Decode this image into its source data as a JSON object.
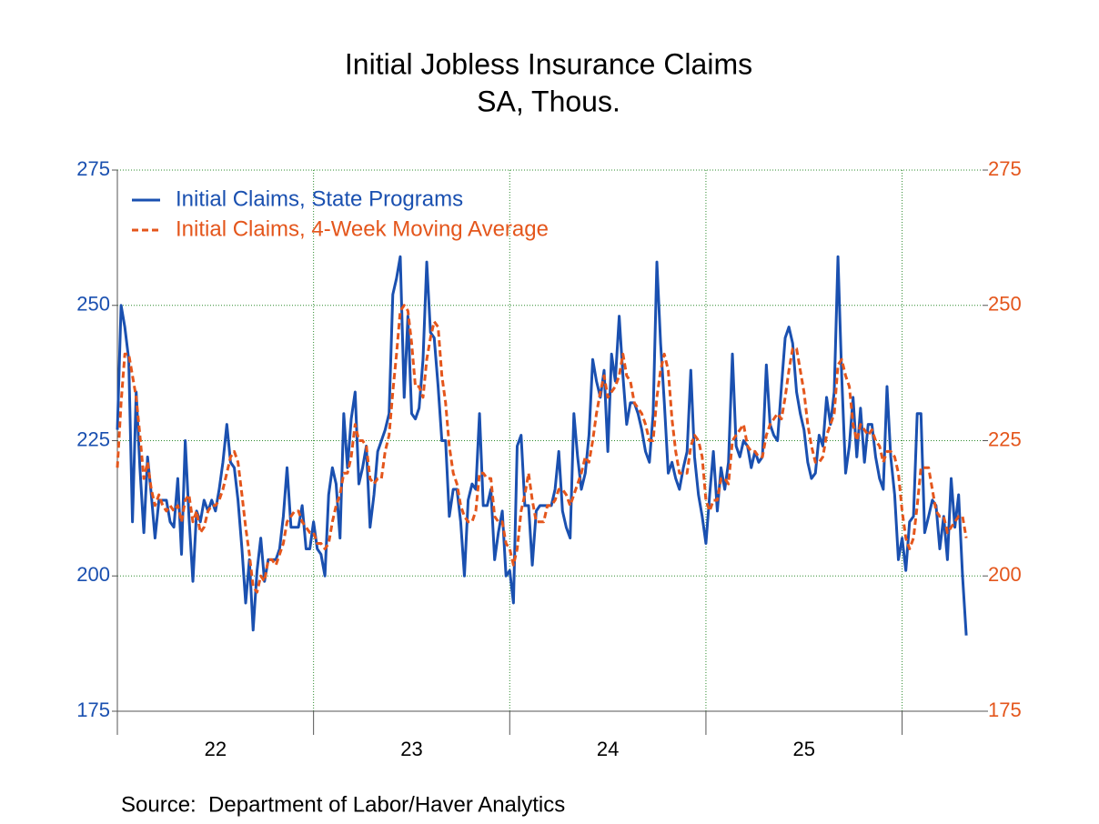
{
  "chart_data": {
    "type": "line",
    "title": "Initial Jobless Insurance Claims",
    "subtitle": "SA, Thous.",
    "source": "Source:  Department of Labor/Haver Analytics",
    "legend": "upper left",
    "grid": true,
    "xlim": [
      2022,
      2026.41
    ],
    "xticks": [
      2022,
      2023,
      2024,
      2025,
      2026
    ],
    "xlabels": [
      {
        "value": 2022.5,
        "label": "22"
      },
      {
        "value": 2023.5,
        "label": "23"
      },
      {
        "value": 2024.5,
        "label": "24"
      },
      {
        "value": 2025.5,
        "label": "25"
      }
    ],
    "ylim": [
      175,
      275
    ],
    "yticks": [
      175,
      200,
      225,
      250,
      275
    ],
    "y2lim": [
      175,
      275
    ],
    "y2ticks": [
      175,
      200,
      225,
      250,
      275
    ],
    "x": [
      2022,
      2022.019,
      2022.038,
      2022.058,
      2022.077,
      2022.096,
      2022.115,
      2022.135,
      2022.154,
      2022.173,
      2022.192,
      2022.212,
      2022.231,
      2022.25,
      2022.269,
      2022.288,
      2022.308,
      2022.327,
      2022.346,
      2022.365,
      2022.385,
      2022.404,
      2022.423,
      2022.442,
      2022.462,
      2022.481,
      2022.5,
      2022.519,
      2022.538,
      2022.558,
      2022.577,
      2022.596,
      2022.615,
      2022.635,
      2022.654,
      2022.673,
      2022.692,
      2022.712,
      2022.731,
      2022.75,
      2022.769,
      2022.788,
      2022.808,
      2022.827,
      2022.846,
      2022.865,
      2022.885,
      2022.904,
      2022.923,
      2022.942,
      2022.962,
      2022.981,
      2023,
      2023.019,
      2023.038,
      2023.058,
      2023.077,
      2023.096,
      2023.115,
      2023.135,
      2023.154,
      2023.173,
      2023.192,
      2023.212,
      2023.231,
      2023.25,
      2023.269,
      2023.288,
      2023.308,
      2023.327,
      2023.346,
      2023.365,
      2023.385,
      2023.404,
      2023.423,
      2023.442,
      2023.462,
      2023.481,
      2023.5,
      2023.519,
      2023.538,
      2023.558,
      2023.577,
      2023.596,
      2023.615,
      2023.635,
      2023.654,
      2023.673,
      2023.692,
      2023.712,
      2023.731,
      2023.75,
      2023.769,
      2023.788,
      2023.808,
      2023.827,
      2023.846,
      2023.865,
      2023.885,
      2023.904,
      2023.923,
      2023.942,
      2023.962,
      2023.981,
      2024,
      2024.019,
      2024.038,
      2024.058,
      2024.077,
      2024.096,
      2024.115,
      2024.135,
      2024.154,
      2024.173,
      2024.192,
      2024.212,
      2024.231,
      2024.25,
      2024.269,
      2024.288,
      2024.308,
      2024.327,
      2024.346,
      2024.365,
      2024.385,
      2024.404,
      2024.423,
      2024.442,
      2024.462,
      2024.481,
      2024.5,
      2024.519,
      2024.538,
      2024.558,
      2024.577,
      2024.596,
      2024.615,
      2024.635,
      2024.654,
      2024.673,
      2024.692,
      2024.712,
      2024.731,
      2024.75,
      2024.769,
      2024.788,
      2024.808,
      2024.827,
      2024.846,
      2024.865,
      2024.885,
      2024.904,
      2024.923,
      2024.942,
      2024.962,
      2024.981,
      2025,
      2025.019,
      2025.038,
      2025.058,
      2025.077,
      2025.096,
      2025.115,
      2025.135,
      2025.154,
      2025.173,
      2025.192,
      2025.212,
      2025.231,
      2025.25,
      2025.269,
      2025.288,
      2025.308,
      2025.327,
      2025.346,
      2025.365,
      2025.385,
      2025.404,
      2025.423,
      2025.442,
      2025.462,
      2025.481,
      2025.5,
      2025.519,
      2025.538,
      2025.558,
      2025.577,
      2025.596,
      2025.615,
      2025.635,
      2025.654,
      2025.673,
      2025.692,
      2025.712,
      2025.731,
      2025.75,
      2025.769,
      2025.788,
      2025.808,
      2025.827,
      2025.846,
      2025.865,
      2025.885,
      2025.904,
      2025.923,
      2025.942,
      2025.962,
      2025.981,
      2026,
      2026.019,
      2026.038,
      2026.058,
      2026.077,
      2026.096,
      2026.115,
      2026.135,
      2026.154,
      2026.173,
      2026.192,
      2026.212,
      2026.231,
      2026.25,
      2026.269,
      2026.288,
      2026.308,
      2026.327
    ],
    "series": [
      {
        "name": "Initial Claims, State Programs",
        "color": "#1a50b0",
        "dashed": false,
        "values": [
          227,
          250,
          246,
          240,
          210,
          234,
          220,
          208,
          222,
          215,
          207,
          214,
          214,
          214,
          210,
          209,
          218,
          204,
          225,
          211,
          199,
          212,
          210,
          214,
          212,
          214,
          212,
          216,
          221,
          228,
          221,
          220,
          214,
          205,
          195,
          203,
          190,
          201,
          207,
          199,
          203,
          203,
          203,
          205,
          211,
          220,
          209,
          209,
          209,
          213,
          205,
          205,
          210,
          205,
          204,
          200,
          215,
          220,
          217,
          207,
          230,
          220,
          229,
          234,
          217,
          220,
          224,
          209,
          215,
          223,
          225,
          227,
          230,
          252,
          255,
          259,
          233,
          248,
          230,
          229,
          231,
          240,
          258,
          245,
          244,
          235,
          225,
          225,
          211,
          216,
          216,
          210,
          200,
          214,
          217,
          216,
          230,
          213,
          213,
          216,
          203,
          208,
          212,
          200,
          201,
          195,
          224,
          226,
          213,
          213,
          202,
          212,
          213,
          213,
          213,
          213,
          216,
          223,
          212,
          209,
          207,
          230,
          222,
          216,
          219,
          226,
          240,
          236,
          233,
          238,
          223,
          241,
          236,
          248,
          237,
          228,
          232,
          232,
          230,
          227,
          223,
          221,
          230,
          258,
          243,
          232,
          219,
          221,
          218,
          216,
          220,
          223,
          238,
          222,
          215,
          211,
          206,
          215,
          223,
          212,
          220,
          216,
          221,
          241,
          224,
          222,
          225,
          224,
          220,
          223,
          221,
          222,
          239,
          228,
          226,
          225,
          235,
          244,
          246,
          243,
          234,
          230,
          227,
          221,
          218,
          219,
          226,
          224,
          233,
          228,
          234,
          259,
          237,
          219,
          224,
          233,
          222,
          231,
          221,
          228,
          228,
          222,
          218,
          216,
          235,
          222,
          215,
          203,
          207,
          201,
          210,
          211,
          230,
          230,
          208,
          211,
          214,
          213,
          205,
          211,
          203,
          218,
          209,
          215,
          200,
          189
        ]
      },
      {
        "name": "Initial Claims, 4-Week Moving Average",
        "color": "#e4561c",
        "dashed": true,
        "axis": "y2",
        "values": [
          220,
          232,
          241,
          241,
          237,
          233,
          226,
          218,
          221,
          216,
          213,
          215,
          213,
          212,
          213,
          212,
          213,
          210,
          214,
          215,
          210,
          212,
          208,
          209,
          212,
          213,
          213,
          214,
          216,
          219,
          222,
          223,
          221,
          215,
          209,
          204,
          198,
          197,
          200,
          199,
          203,
          203,
          202,
          204,
          206,
          210,
          211,
          212,
          212,
          210,
          209,
          208,
          208,
          206,
          206,
          205,
          206,
          210,
          213,
          215,
          219,
          219,
          222,
          228,
          225,
          225,
          224,
          218,
          217,
          218,
          218,
          223,
          226,
          234,
          241,
          249,
          250,
          249,
          243,
          235,
          235,
          233,
          240,
          244,
          247,
          246,
          237,
          232,
          224,
          219,
          217,
          213,
          211,
          210,
          210,
          212,
          219,
          219,
          218,
          218,
          211,
          210,
          210,
          206,
          205,
          202,
          205,
          212,
          215,
          219,
          214,
          210,
          210,
          210,
          213,
          213,
          214,
          216,
          216,
          215,
          213,
          215,
          217,
          219,
          222,
          221,
          225,
          230,
          234,
          237,
          233,
          234,
          235,
          237,
          241,
          237,
          236,
          232,
          231,
          230,
          228,
          225,
          225,
          233,
          238,
          241,
          238,
          229,
          223,
          219,
          219,
          219,
          224,
          226,
          225,
          222,
          214,
          212,
          214,
          214,
          218,
          218,
          217,
          225,
          226,
          227,
          228,
          224,
          223,
          223,
          222,
          222,
          226,
          228,
          229,
          230,
          229,
          233,
          238,
          242,
          242,
          238,
          234,
          228,
          224,
          221,
          221,
          222,
          226,
          228,
          230,
          239,
          240,
          237,
          235,
          228,
          225,
          228,
          227,
          226,
          227,
          225,
          224,
          221,
          223,
          223,
          222,
          219,
          212,
          207,
          205,
          207,
          213,
          220,
          220,
          220,
          216,
          212,
          211,
          211,
          208,
          209,
          210,
          211,
          211,
          207
        ]
      }
    ]
  }
}
